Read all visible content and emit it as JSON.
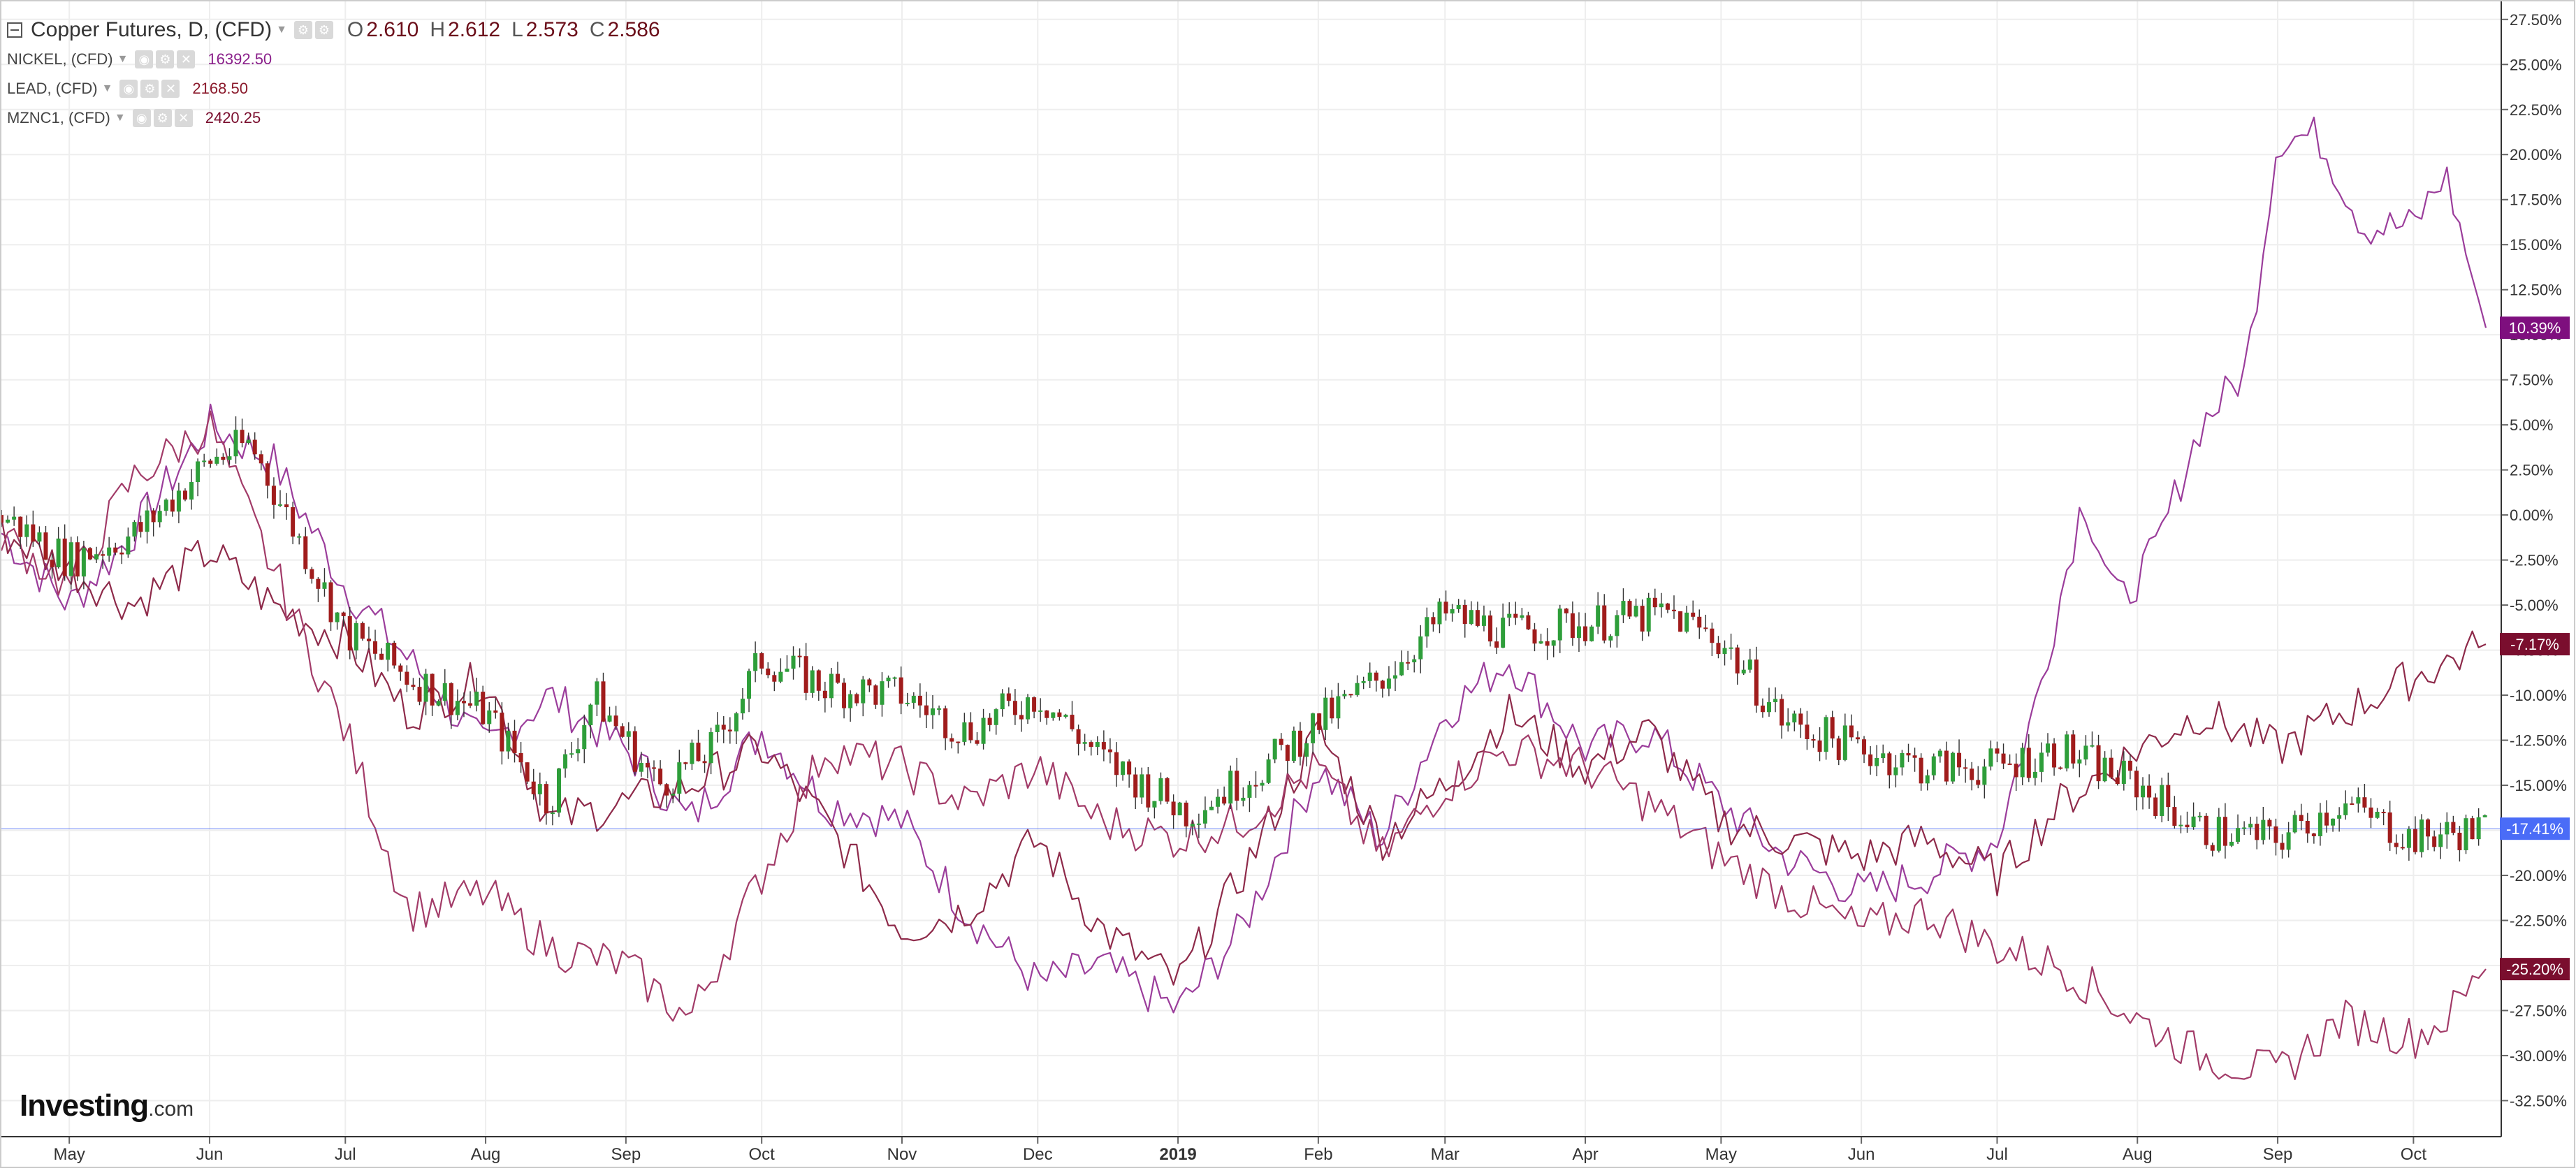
{
  "legend": {
    "main_title": "Copper Futures, D, (CFD)",
    "ohlc": [
      {
        "label": "O",
        "value": "2.610"
      },
      {
        "label": "H",
        "value": "2.612"
      },
      {
        "label": "L",
        "value": "2.573"
      },
      {
        "label": "C",
        "value": "2.586"
      }
    ],
    "series": [
      {
        "name": "NICKEL, (CFD)",
        "value": "16392.50",
        "color": "#8a1f8a"
      },
      {
        "name": "LEAD, (CFD)",
        "value": "2168.50",
        "color": "#8b1a2c"
      },
      {
        "name": "MZNC1, (CFD)",
        "value": "2420.25",
        "color": "#7a0e2e"
      }
    ]
  },
  "logo": {
    "brand": "Investing",
    "suffix": ".com"
  },
  "colors": {
    "up": "#2e9e3a",
    "down": "#a01c1c",
    "nickel": "#9b3d9b",
    "lead": "#8e2a4a",
    "zinc": "#a23b68",
    "baseline": "#4a6cf7",
    "grid": "#eeeeee",
    "axis": "#333333"
  },
  "chart_data": {
    "type": "line",
    "ylim": [
      -34.5,
      28.5
    ],
    "y_ticks": [
      "27.50%",
      "25.00%",
      "22.50%",
      "20.00%",
      "17.50%",
      "15.00%",
      "12.50%",
      "10.00%",
      "7.50%",
      "5.00%",
      "2.50%",
      "0.00%",
      "-2.50%",
      "-5.00%",
      "-7.50%",
      "-10.00%",
      "-12.50%",
      "-15.00%",
      "-17.50%",
      "-20.00%",
      "-22.50%",
      "-25.00%",
      "-27.50%",
      "-30.00%",
      "-32.50%"
    ],
    "y_tick_values": [
      27.5,
      25,
      22.5,
      20,
      17.5,
      15,
      12.5,
      10,
      7.5,
      5,
      2.5,
      0,
      -2.5,
      -5,
      -7.5,
      -10,
      -12.5,
      -15,
      -17.5,
      -20,
      -22.5,
      -25,
      -27.5,
      -30,
      -32.5
    ],
    "x_range": [
      "2018-04-16",
      "2019-10-17"
    ],
    "x_ticks": [
      {
        "label": "May",
        "date": "2018-05-01"
      },
      {
        "label": "Jun",
        "date": "2018-06-01"
      },
      {
        "label": "Jul",
        "date": "2018-07-01"
      },
      {
        "label": "Aug",
        "date": "2018-08-01"
      },
      {
        "label": "Sep",
        "date": "2018-09-01"
      },
      {
        "label": "Oct",
        "date": "2018-10-01"
      },
      {
        "label": "Nov",
        "date": "2018-11-01"
      },
      {
        "label": "Dec",
        "date": "2018-12-01"
      },
      {
        "label": "2019",
        "date": "2019-01-01",
        "bold": true
      },
      {
        "label": "Feb",
        "date": "2019-02-01"
      },
      {
        "label": "Mar",
        "date": "2019-03-01"
      },
      {
        "label": "Apr",
        "date": "2019-04-01"
      },
      {
        "label": "May",
        "date": "2019-05-01"
      },
      {
        "label": "Jun",
        "date": "2019-06-01"
      },
      {
        "label": "Jul",
        "date": "2019-07-01"
      },
      {
        "label": "Aug",
        "date": "2019-08-01"
      },
      {
        "label": "Sep",
        "date": "2019-09-01"
      },
      {
        "label": "Oct",
        "date": "2019-10-01"
      }
    ],
    "copper_candles_pct": [
      [
        "2018-04-16",
        0
      ],
      [
        "2018-05-01",
        -2.5
      ],
      [
        "2018-05-16",
        -1
      ],
      [
        "2018-06-01",
        3
      ],
      [
        "2018-06-10",
        4
      ],
      [
        "2018-06-20",
        -1
      ],
      [
        "2018-07-01",
        -6.5
      ],
      [
        "2018-07-15",
        -9
      ],
      [
        "2018-08-01",
        -11
      ],
      [
        "2018-08-15",
        -16
      ],
      [
        "2018-08-25",
        -10
      ],
      [
        "2018-09-08",
        -15
      ],
      [
        "2018-09-20",
        -13
      ],
      [
        "2018-10-01",
        -8
      ],
      [
        "2018-10-15",
        -9.5
      ],
      [
        "2018-11-01",
        -10
      ],
      [
        "2018-11-15",
        -12
      ],
      [
        "2018-12-01",
        -10
      ],
      [
        "2018-12-15",
        -13.5
      ],
      [
        "2019-01-03",
        -16.5
      ],
      [
        "2019-01-20",
        -14
      ],
      [
        "2019-02-01",
        -11.5
      ],
      [
        "2019-02-15",
        -9
      ],
      [
        "2019-03-01",
        -5.5
      ],
      [
        "2019-03-15",
        -6.5
      ],
      [
        "2019-04-01",
        -6
      ],
      [
        "2019-04-20",
        -5.5
      ],
      [
        "2019-05-01",
        -7
      ],
      [
        "2019-05-15",
        -11.5
      ],
      [
        "2019-06-01",
        -13
      ],
      [
        "2019-06-15",
        -14
      ],
      [
        "2019-07-01",
        -14
      ],
      [
        "2019-07-15",
        -13
      ],
      [
        "2019-08-01",
        -15
      ],
      [
        "2019-08-15",
        -17.5
      ],
      [
        "2019-09-01",
        -18
      ],
      [
        "2019-09-15",
        -16
      ],
      [
        "2019-10-01",
        -18
      ],
      [
        "2019-10-17",
        -17.41
      ]
    ],
    "series": [
      {
        "name": "NICKEL, (CFD)",
        "last": 10.39,
        "last_label": "10.39%",
        "values": [
          [
            "2018-04-16",
            -1
          ],
          [
            "2018-05-01",
            -5
          ],
          [
            "2018-05-15",
            -1
          ],
          [
            "2018-06-01",
            5
          ],
          [
            "2018-06-15",
            3
          ],
          [
            "2018-07-01",
            -4
          ],
          [
            "2018-07-15",
            -8
          ],
          [
            "2018-08-01",
            -13
          ],
          [
            "2018-08-15",
            -10
          ],
          [
            "2018-09-01",
            -13
          ],
          [
            "2018-09-15",
            -17
          ],
          [
            "2018-10-01",
            -12
          ],
          [
            "2018-10-15",
            -16
          ],
          [
            "2018-11-01",
            -17
          ],
          [
            "2018-11-15",
            -22
          ],
          [
            "2018-12-01",
            -26
          ],
          [
            "2018-12-15",
            -25
          ],
          [
            "2019-01-01",
            -27.5
          ],
          [
            "2019-01-15",
            -23
          ],
          [
            "2019-02-01",
            -14
          ],
          [
            "2019-02-15",
            -18
          ],
          [
            "2019-03-01",
            -11
          ],
          [
            "2019-03-15",
            -8
          ],
          [
            "2019-04-01",
            -13
          ],
          [
            "2019-04-15",
            -12
          ],
          [
            "2019-05-01",
            -16
          ],
          [
            "2019-05-15",
            -19
          ],
          [
            "2019-06-01",
            -21
          ],
          [
            "2019-06-15",
            -20
          ],
          [
            "2019-07-01",
            -18
          ],
          [
            "2019-07-10",
            -10
          ],
          [
            "2019-07-20",
            1
          ],
          [
            "2019-07-28",
            -5
          ],
          [
            "2019-08-05",
            -2
          ],
          [
            "2019-08-15",
            5
          ],
          [
            "2019-08-25",
            8
          ],
          [
            "2019-09-01",
            21
          ],
          [
            "2019-09-10",
            21
          ],
          [
            "2019-09-20",
            16
          ],
          [
            "2019-10-01",
            16
          ],
          [
            "2019-10-08",
            19
          ],
          [
            "2019-10-17",
            10.39
          ]
        ]
      },
      {
        "name": "LEAD, (CFD)",
        "last": -7.17,
        "last_label": "-7.17%",
        "values": [
          [
            "2018-04-16",
            -1
          ],
          [
            "2018-05-01",
            -3
          ],
          [
            "2018-05-15",
            -5
          ],
          [
            "2018-06-01",
            -2
          ],
          [
            "2018-06-15",
            -5
          ],
          [
            "2018-07-01",
            -7
          ],
          [
            "2018-07-15",
            -11
          ],
          [
            "2018-08-01",
            -9
          ],
          [
            "2018-08-15",
            -17
          ],
          [
            "2018-09-01",
            -16
          ],
          [
            "2018-09-15",
            -15
          ],
          [
            "2018-10-01",
            -13
          ],
          [
            "2018-10-15",
            -17
          ],
          [
            "2018-11-01",
            -23
          ],
          [
            "2018-11-15",
            -22
          ],
          [
            "2018-12-01",
            -18
          ],
          [
            "2018-12-15",
            -23
          ],
          [
            "2019-01-01",
            -26
          ],
          [
            "2019-01-15",
            -20
          ],
          [
            "2019-02-01",
            -12
          ],
          [
            "2019-02-15",
            -18
          ],
          [
            "2019-03-01",
            -15
          ],
          [
            "2019-03-15",
            -11
          ],
          [
            "2019-04-01",
            -14
          ],
          [
            "2019-04-15",
            -12
          ],
          [
            "2019-05-01",
            -17
          ],
          [
            "2019-05-15",
            -18
          ],
          [
            "2019-06-01",
            -19
          ],
          [
            "2019-06-15",
            -18
          ],
          [
            "2019-07-01",
            -20
          ],
          [
            "2019-07-15",
            -16
          ],
          [
            "2019-08-01",
            -13
          ],
          [
            "2019-08-15",
            -11
          ],
          [
            "2019-09-01",
            -13
          ],
          [
            "2019-09-15",
            -11
          ],
          [
            "2019-10-01",
            -9
          ],
          [
            "2019-10-17",
            -7.17
          ]
        ]
      },
      {
        "name": "MZNC1, (CFD)",
        "last": -25.2,
        "last_label": "-25.20%",
        "values": [
          [
            "2018-04-16",
            -1
          ],
          [
            "2018-05-01",
            -4
          ],
          [
            "2018-05-15",
            2
          ],
          [
            "2018-06-01",
            5
          ],
          [
            "2018-06-15",
            -3
          ],
          [
            "2018-07-01",
            -12
          ],
          [
            "2018-07-15",
            -22
          ],
          [
            "2018-08-01",
            -21
          ],
          [
            "2018-08-15",
            -24
          ],
          [
            "2018-09-01",
            -25
          ],
          [
            "2018-09-15",
            -28
          ],
          [
            "2018-10-01",
            -20
          ],
          [
            "2018-10-15",
            -13
          ],
          [
            "2018-11-01",
            -14
          ],
          [
            "2018-11-15",
            -16
          ],
          [
            "2018-12-01",
            -14
          ],
          [
            "2018-12-15",
            -17
          ],
          [
            "2019-01-01",
            -18
          ],
          [
            "2019-01-15",
            -17
          ],
          [
            "2019-02-01",
            -14
          ],
          [
            "2019-02-15",
            -19
          ],
          [
            "2019-03-01",
            -15
          ],
          [
            "2019-03-15",
            -13
          ],
          [
            "2019-04-01",
            -14
          ],
          [
            "2019-04-15",
            -16
          ],
          [
            "2019-05-01",
            -19
          ],
          [
            "2019-05-15",
            -21
          ],
          [
            "2019-06-01",
            -23
          ],
          [
            "2019-06-15",
            -22
          ],
          [
            "2019-07-01",
            -24
          ],
          [
            "2019-07-15",
            -25
          ],
          [
            "2019-08-01",
            -28
          ],
          [
            "2019-08-15",
            -30
          ],
          [
            "2019-09-01",
            -31
          ],
          [
            "2019-09-15",
            -28
          ],
          [
            "2019-10-01",
            -29
          ],
          [
            "2019-10-08",
            -28
          ],
          [
            "2019-10-17",
            -25.2
          ]
        ]
      }
    ],
    "copper_last_label": "-17.41%",
    "copper_last": -17.41
  }
}
